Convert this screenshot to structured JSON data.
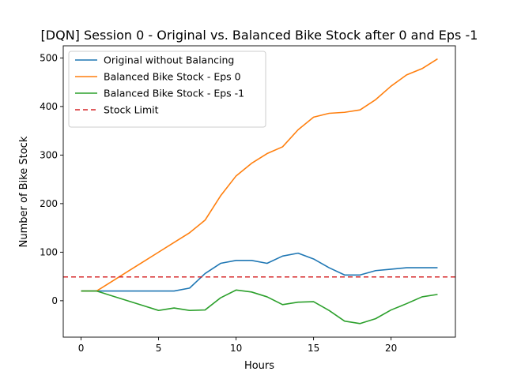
{
  "chart_data": {
    "type": "line",
    "title": "[DQN] Session 0 - Original vs. Balanced Bike Stock after 0 and Eps -1",
    "xlabel": "Hours",
    "ylabel": "Number of Bike Stock",
    "xlim": [
      -1.15,
      24.15
    ],
    "ylim": [
      -75,
      525
    ],
    "xticks": [
      0,
      5,
      10,
      15,
      20
    ],
    "yticks": [
      0,
      100,
      200,
      300,
      400,
      500
    ],
    "legend_position": "upper-left",
    "x": [
      0,
      1,
      2,
      3,
      4,
      5,
      6,
      7,
      8,
      9,
      10,
      11,
      12,
      13,
      14,
      15,
      16,
      17,
      18,
      19,
      20,
      21,
      22,
      23
    ],
    "series": [
      {
        "name": "Original without Balancing",
        "color": "#1f77b4",
        "style": "solid",
        "values": [
          20,
          20,
          20,
          20,
          20,
          20,
          20,
          26,
          56,
          77,
          83,
          83,
          77,
          92,
          98,
          86,
          68,
          53,
          53,
          62,
          65,
          68,
          68,
          68
        ]
      },
      {
        "name": "Balanced Bike Stock - Eps 0",
        "color": "#ff7f0e",
        "style": "solid",
        "values": [
          20,
          20,
          40,
          60,
          80,
          100,
          120,
          140,
          166,
          216,
          257,
          283,
          303,
          317,
          352,
          378,
          386,
          388,
          393,
          414,
          442,
          465,
          478,
          498
        ]
      },
      {
        "name": "Balanced Bike Stock - Eps -1",
        "color": "#2ca02c",
        "style": "solid",
        "values": [
          20,
          20,
          10,
          0,
          -10,
          -20,
          -15,
          -20,
          -19,
          6,
          22,
          18,
          8,
          -8,
          -3,
          -2,
          -20,
          -42,
          -47,
          -37,
          -19,
          -6,
          8,
          13
        ]
      },
      {
        "name": "Stock Limit",
        "color": "#d62728",
        "style": "dashed",
        "hline": 49
      }
    ]
  }
}
